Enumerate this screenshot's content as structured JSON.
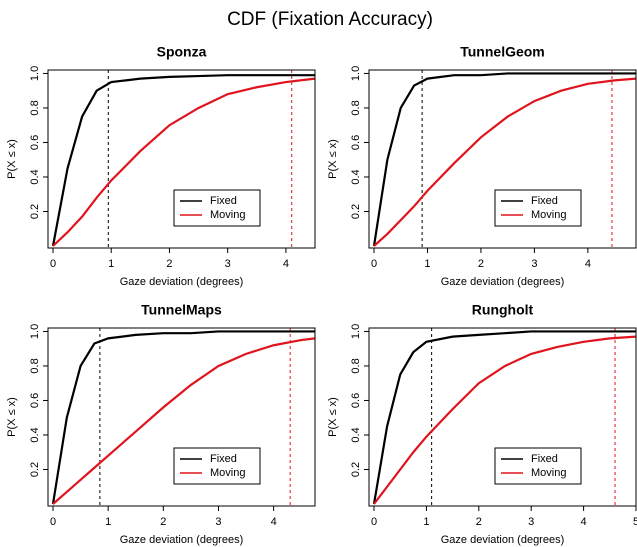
{
  "title": "CDF (Fixation Accuracy)",
  "chart_data": [
    {
      "type": "line",
      "title": "Sponza",
      "xlabel": "Gaze deviation (degrees)",
      "ylabel": "P(X ≤ x)",
      "x": [
        0,
        0.25,
        0.5,
        0.75,
        1,
        1.5,
        2,
        2.5,
        3,
        3.5,
        4,
        4.5
      ],
      "series": [
        {
          "name": "Fixed",
          "color": "#000000",
          "values": [
            0,
            0.45,
            0.75,
            0.9,
            0.95,
            0.97,
            0.98,
            0.985,
            0.99,
            0.99,
            0.99,
            0.99
          ]
        },
        {
          "name": "Moving",
          "color": "#e0141e",
          "values": [
            0,
            0.08,
            0.17,
            0.28,
            0.38,
            0.55,
            0.7,
            0.8,
            0.88,
            0.92,
            0.95,
            0.97
          ]
        }
      ],
      "vlines": [
        {
          "x": 0.95,
          "color": "#000000"
        },
        {
          "x": 4.1,
          "color": "#e0141e"
        }
      ],
      "xlim": [
        0,
        4.5
      ],
      "ylim": [
        0,
        1.02
      ],
      "xticks": [
        0,
        1,
        2,
        3,
        4
      ],
      "yticks": [
        0.2,
        0.4,
        0.6,
        0.8,
        {
          "value": 1,
          "label": "1.0"
        }
      ],
      "legend": "bottomright"
    },
    {
      "type": "line",
      "title": "TunnelGeom",
      "xlabel": "Gaze deviation (degrees)",
      "ylabel": "P(X ≤ x)",
      "x": [
        0,
        0.25,
        0.5,
        0.75,
        1,
        1.5,
        2,
        2.5,
        3,
        3.5,
        4,
        4.5,
        4.9
      ],
      "series": [
        {
          "name": "Fixed",
          "color": "#000000",
          "values": [
            0,
            0.5,
            0.8,
            0.93,
            0.97,
            0.99,
            0.99,
            1,
            1,
            1,
            1,
            1,
            1
          ]
        },
        {
          "name": "Moving",
          "color": "#e0141e",
          "values": [
            0,
            0.07,
            0.15,
            0.23,
            0.32,
            0.48,
            0.63,
            0.75,
            0.84,
            0.9,
            0.94,
            0.96,
            0.97
          ]
        }
      ],
      "vlines": [
        {
          "x": 0.9,
          "color": "#000000"
        },
        {
          "x": 4.45,
          "color": "#e0141e"
        }
      ],
      "xlim": [
        0,
        4.9
      ],
      "ylim": [
        0,
        1.02
      ],
      "xticks": [
        0,
        1,
        2,
        3,
        4
      ],
      "yticks": [
        0.2,
        0.4,
        0.6,
        0.8,
        {
          "value": 1,
          "label": "1.0"
        }
      ],
      "legend": "bottomright"
    },
    {
      "type": "line",
      "title": "TunnelMaps",
      "xlabel": "Gaze deviation (degrees)",
      "ylabel": "P(X ≤ x)",
      "x": [
        0,
        0.25,
        0.5,
        0.75,
        1,
        1.5,
        2,
        2.5,
        3,
        3.5,
        4,
        4.5,
        4.75
      ],
      "series": [
        {
          "name": "Fixed",
          "color": "#000000",
          "values": [
            0,
            0.5,
            0.8,
            0.93,
            0.96,
            0.98,
            0.99,
            0.99,
            1,
            1,
            1,
            1,
            1
          ]
        },
        {
          "name": "Moving",
          "color": "#e0141e",
          "values": [
            0,
            0.07,
            0.14,
            0.21,
            0.28,
            0.42,
            0.56,
            0.69,
            0.8,
            0.87,
            0.92,
            0.95,
            0.96
          ]
        }
      ],
      "vlines": [
        {
          "x": 0.85,
          "color": "#000000"
        },
        {
          "x": 4.3,
          "color": "#e0141e"
        }
      ],
      "xlim": [
        0,
        4.75
      ],
      "ylim": [
        0,
        1.02
      ],
      "xticks": [
        0,
        1,
        2,
        3,
        4
      ],
      "yticks": [
        0.2,
        0.4,
        0.6,
        0.8,
        {
          "value": 1,
          "label": "1.0"
        }
      ],
      "legend": "bottomright"
    },
    {
      "type": "line",
      "title": "Rungholt",
      "xlabel": "Gaze deviation (degrees)",
      "ylabel": "P(X ≤ x)",
      "x": [
        0,
        0.25,
        0.5,
        0.75,
        1,
        1.5,
        2,
        2.5,
        3,
        3.5,
        4,
        4.5,
        5
      ],
      "series": [
        {
          "name": "Fixed",
          "color": "#000000",
          "values": [
            0,
            0.45,
            0.75,
            0.88,
            0.94,
            0.97,
            0.98,
            0.99,
            1,
            1,
            1,
            1,
            1
          ]
        },
        {
          "name": "Moving",
          "color": "#e0141e",
          "values": [
            0,
            0.1,
            0.2,
            0.3,
            0.39,
            0.55,
            0.7,
            0.8,
            0.87,
            0.91,
            0.94,
            0.96,
            0.97
          ]
        }
      ],
      "vlines": [
        {
          "x": 1.1,
          "color": "#000000"
        },
        {
          "x": 4.6,
          "color": "#e0141e"
        }
      ],
      "xlim": [
        0,
        5
      ],
      "ylim": [
        0,
        1.02
      ],
      "xticks": [
        0,
        1,
        2,
        3,
        4,
        5
      ],
      "yticks": [
        0.2,
        0.4,
        0.6,
        0.8,
        {
          "value": 1,
          "label": "1.0"
        }
      ],
      "legend": "bottomright"
    }
  ]
}
